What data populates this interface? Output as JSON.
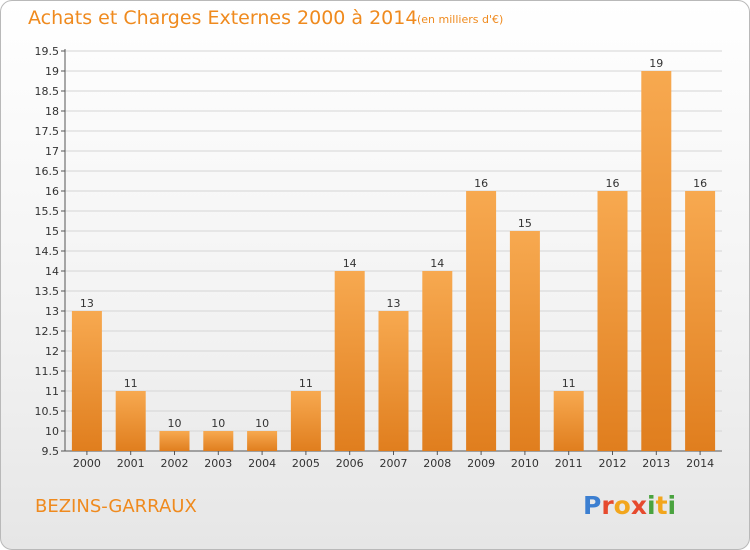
{
  "header": {
    "title": "Achats et Charges Externes 2000 à 2014",
    "subtitle": "(en milliers d'€)"
  },
  "footer": {
    "commune": "BEZINS-GARRAUX",
    "logo_letters": [
      "P",
      "r",
      "o",
      "x",
      "i",
      "t",
      "i"
    ],
    "logo_colors": [
      "#3c7fd1",
      "#e64a2e",
      "#f2a61d",
      "#e64a2e",
      "#4aa33f",
      "#f2a61d",
      "#4aa33f"
    ]
  },
  "colors": {
    "bar_light": "#f7a950",
    "bar_dark": "#e07e1e",
    "title": "#ef8a1e",
    "grid": "#d5d5d5"
  },
  "chart_data": {
    "type": "bar",
    "title": "Achats et Charges Externes 2000 à 2014",
    "subtitle": "(en milliers d'€)",
    "xlabel": "",
    "ylabel": "",
    "categories": [
      "2000",
      "2001",
      "2002",
      "2003",
      "2004",
      "2005",
      "2006",
      "2007",
      "2008",
      "2009",
      "2010",
      "2011",
      "2012",
      "2013",
      "2014"
    ],
    "values": [
      13,
      11,
      10,
      10,
      10,
      11,
      14,
      13,
      14,
      16,
      15,
      11,
      16,
      19,
      16
    ],
    "data_labels": [
      "13",
      "11",
      "10",
      "10",
      "10",
      "11",
      "14",
      "13",
      "14",
      "16",
      "15",
      "11",
      "16",
      "19",
      "16"
    ],
    "ylim": [
      9.5,
      19.5
    ],
    "yticks": [
      9.5,
      10,
      10.5,
      11,
      11.5,
      12,
      12.5,
      13,
      13.5,
      14,
      14.5,
      15,
      15.5,
      16,
      16.5,
      17,
      17.5,
      18,
      18.5,
      19,
      19.5
    ],
    "ytick_labels": [
      "9.5",
      "10",
      "10.5",
      "11",
      "11.5",
      "12",
      "12.5",
      "13",
      "13.5",
      "14",
      "14.5",
      "15",
      "15.5",
      "16",
      "16.5",
      "17",
      "17.5",
      "18",
      "18.5",
      "19",
      "19.5"
    ],
    "grid": true,
    "legend": "none"
  }
}
